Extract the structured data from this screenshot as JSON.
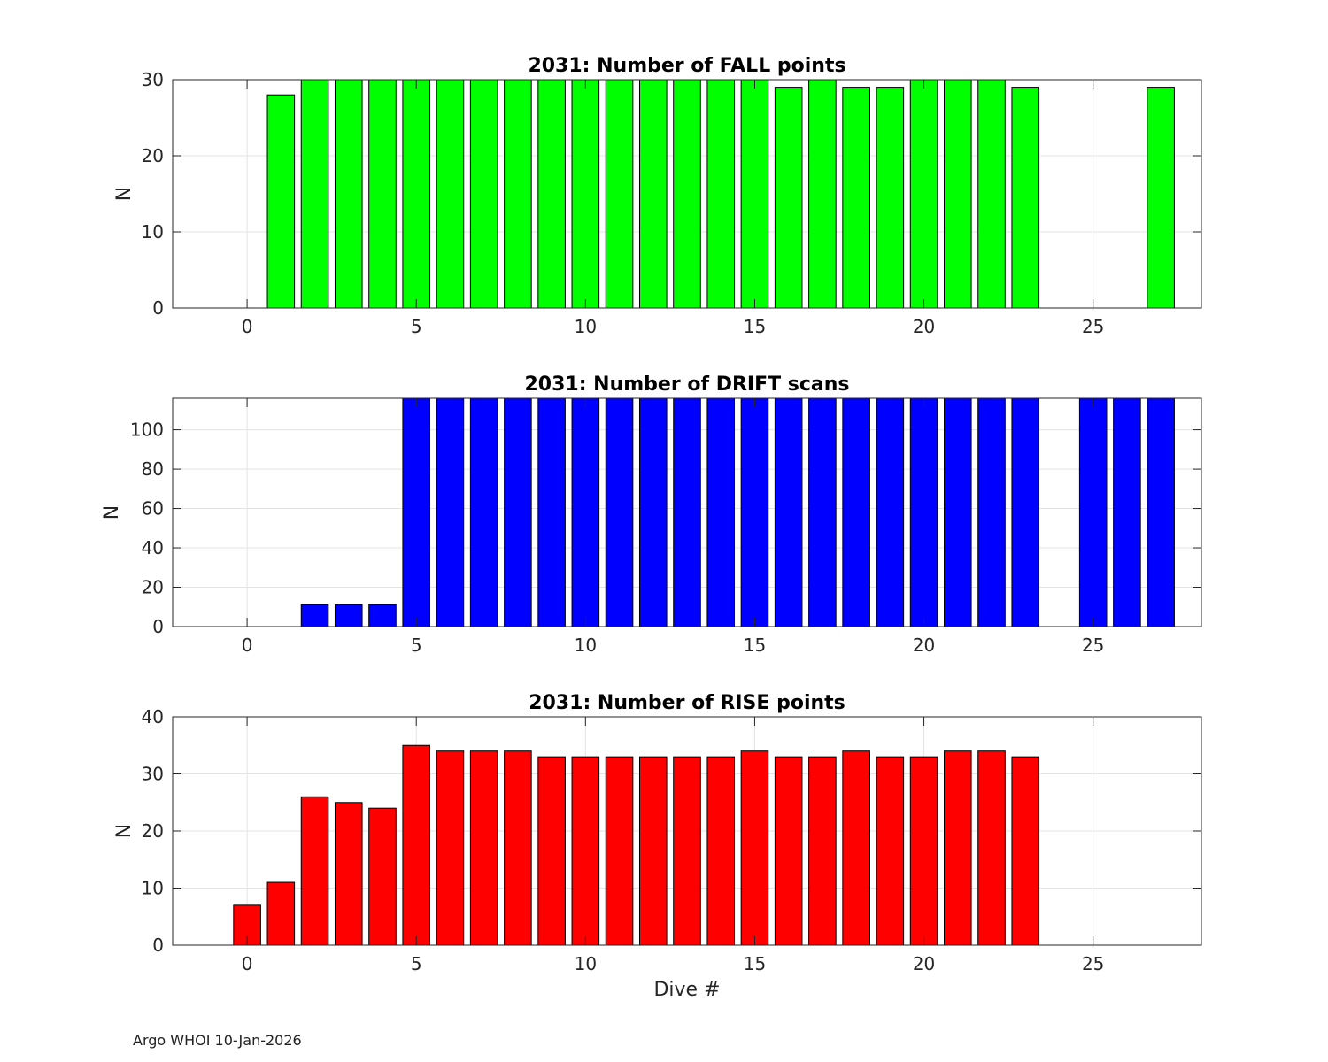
{
  "footer": "Argo WHOI 10-Jan-2026",
  "chart_data": [
    {
      "type": "bar",
      "title": "2031: Number of FALL points",
      "xlabel": "",
      "ylabel": "N",
      "xlim": [
        -2.2,
        28.2
      ],
      "ylim": [
        0,
        30
      ],
      "xticks": [
        0,
        5,
        10,
        15,
        20,
        25
      ],
      "yticks": [
        0,
        10,
        20,
        30
      ],
      "grid": true,
      "color": "#00ff00",
      "x": [
        1,
        2,
        3,
        4,
        5,
        6,
        7,
        8,
        9,
        10,
        11,
        12,
        13,
        14,
        15,
        16,
        17,
        18,
        19,
        20,
        21,
        22,
        23,
        27
      ],
      "values": [
        28,
        30,
        30,
        30,
        30,
        30,
        30,
        30,
        30,
        30,
        30,
        30,
        30,
        30,
        30,
        29,
        30,
        29,
        29,
        30,
        30,
        30,
        29,
        29
      ]
    },
    {
      "type": "bar",
      "title": "2031: Number of DRIFT scans",
      "xlabel": "",
      "ylabel": "N",
      "xlim": [
        -2.2,
        28.2
      ],
      "ylim": [
        0,
        116
      ],
      "xticks": [
        0,
        5,
        10,
        15,
        20,
        25
      ],
      "yticks": [
        0,
        20,
        40,
        60,
        80,
        100
      ],
      "grid": true,
      "color": "#0000ff",
      "x": [
        -1,
        0,
        1,
        2,
        3,
        4,
        5,
        6,
        7,
        8,
        9,
        10,
        11,
        12,
        13,
        14,
        15,
        16,
        17,
        18,
        19,
        20,
        21,
        22,
        23,
        24,
        25,
        26,
        27
      ],
      "values": [
        0,
        0,
        0,
        11,
        11,
        11,
        116,
        116,
        116,
        116,
        116,
        116,
        116,
        116,
        116,
        116,
        116,
        116,
        116,
        116,
        116,
        116,
        116,
        116,
        116,
        0,
        116,
        116,
        116
      ]
    },
    {
      "type": "bar",
      "title": "2031: Number of RISE points",
      "xlabel": "Dive #",
      "ylabel": "N",
      "xlim": [
        -2.2,
        28.2
      ],
      "ylim": [
        0,
        40
      ],
      "xticks": [
        0,
        5,
        10,
        15,
        20,
        25
      ],
      "yticks": [
        0,
        10,
        20,
        30,
        40
      ],
      "grid": true,
      "color": "#ff0000",
      "x": [
        0,
        1,
        2,
        3,
        4,
        5,
        6,
        7,
        8,
        9,
        10,
        11,
        12,
        13,
        14,
        15,
        16,
        17,
        18,
        19,
        20,
        21,
        22,
        23
      ],
      "values": [
        7,
        11,
        26,
        25,
        24,
        35,
        34,
        34,
        34,
        33,
        33,
        33,
        33,
        33,
        33,
        34,
        33,
        33,
        34,
        33,
        33,
        34,
        34,
        33
      ]
    }
  ]
}
